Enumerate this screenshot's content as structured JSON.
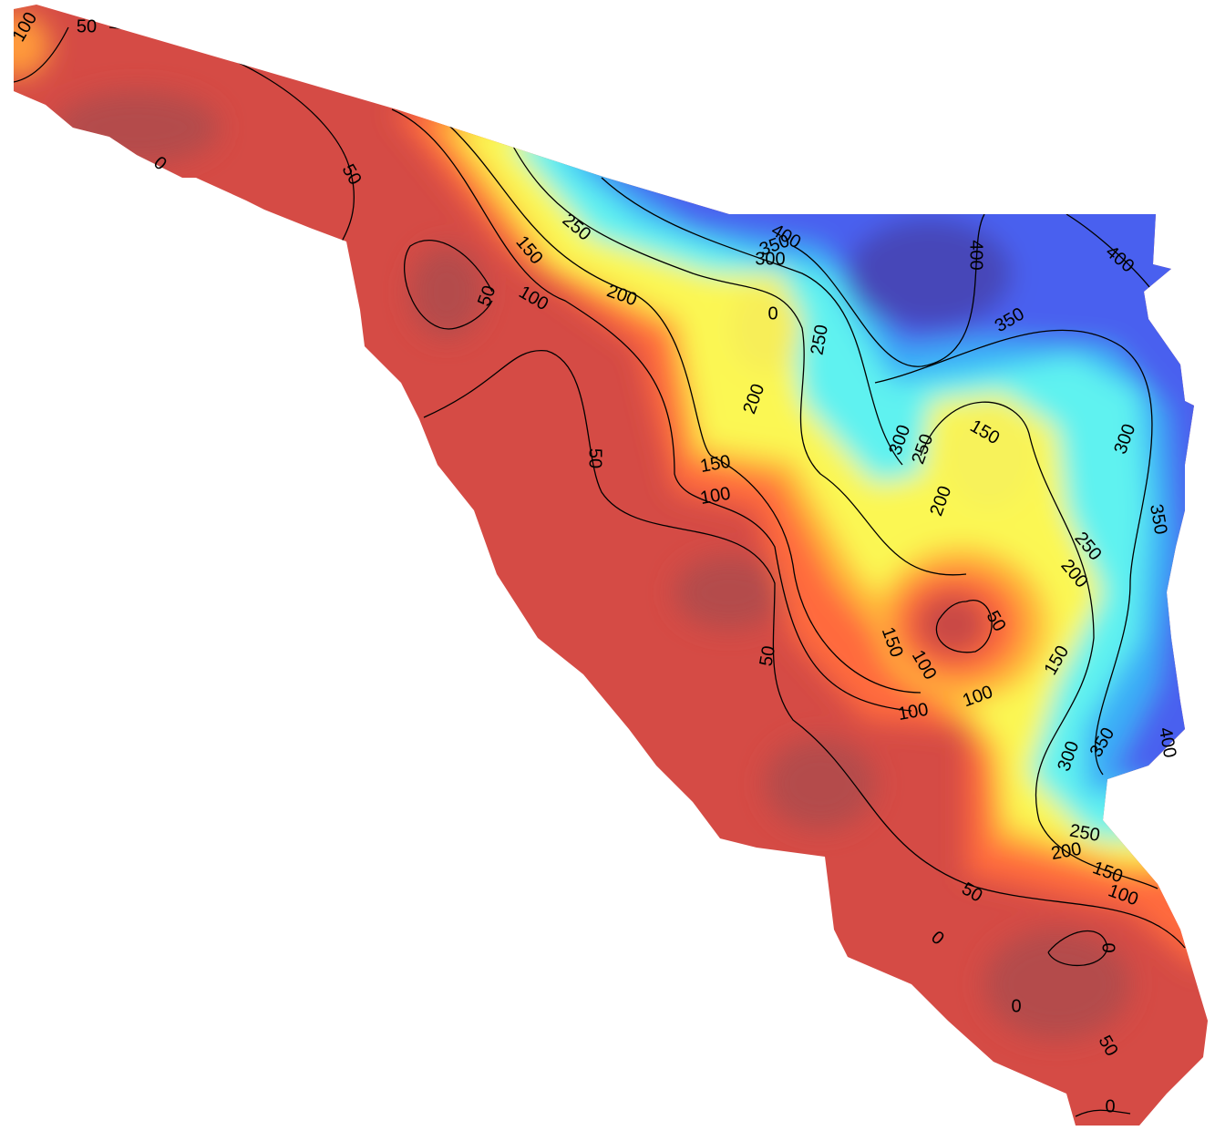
{
  "contour_labels": [
    100,
    50,
    0,
    50,
    400,
    350,
    300,
    250,
    150,
    100,
    50,
    200,
    0,
    250,
    400,
    400,
    350,
    200,
    300,
    250,
    150,
    300,
    50,
    150,
    100,
    200,
    350,
    250,
    200,
    50,
    150,
    100,
    50,
    150,
    100,
    100,
    350,
    300,
    400,
    250,
    200,
    150,
    100,
    50,
    0,
    0,
    0,
    50,
    0
  ]
}
